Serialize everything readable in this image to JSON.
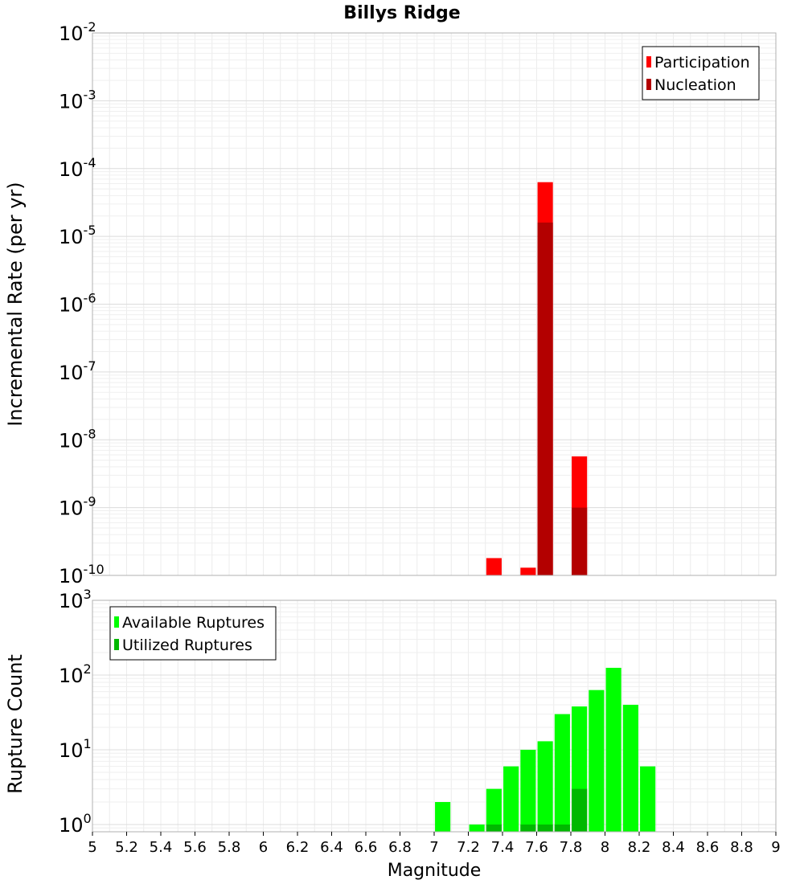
{
  "chart_data": [
    {
      "type": "bar",
      "title": "Billys Ridge",
      "xlabel": "",
      "ylabel": "Incremental Rate (per yr)",
      "yscale": "log",
      "ylim": [
        1e-10,
        0.01
      ],
      "xlim": [
        5,
        9
      ],
      "yticks": [
        {
          "base": "10",
          "exp": "-2"
        },
        {
          "base": "10",
          "exp": "-3"
        },
        {
          "base": "10",
          "exp": "-4"
        },
        {
          "base": "10",
          "exp": "-5"
        },
        {
          "base": "10",
          "exp": "-6"
        },
        {
          "base": "10",
          "exp": "-7"
        },
        {
          "base": "10",
          "exp": "-8"
        },
        {
          "base": "10",
          "exp": "-9"
        },
        {
          "base": "10",
          "exp": "-10"
        }
      ],
      "grid": true,
      "legend_position": "top-right",
      "series": [
        {
          "name": "Participation",
          "color": "#ff0000",
          "x": [
            7.35,
            7.55,
            7.65,
            7.85
          ],
          "values": [
            1.8e-10,
            1.3e-10,
            6.3e-05,
            5.7e-09
          ]
        },
        {
          "name": "Nucleation",
          "color": "#b30000",
          "x": [
            7.65,
            7.85
          ],
          "values": [
            1.6e-05,
            1e-09
          ]
        }
      ]
    },
    {
      "type": "bar",
      "xlabel": "Magnitude",
      "ylabel": "Rupture Count",
      "yscale": "log",
      "ylim": [
        0.8,
        1000
      ],
      "xlim": [
        5,
        9
      ],
      "yticks": [
        {
          "base": "10",
          "exp": "3"
        },
        {
          "base": "10",
          "exp": "2"
        },
        {
          "base": "10",
          "exp": "1"
        },
        {
          "base": "10",
          "exp": "0"
        }
      ],
      "xticks": [
        "5",
        "5.2",
        "5.4",
        "5.6",
        "5.8",
        "6",
        "6.2",
        "6.4",
        "6.6",
        "6.8",
        "7",
        "7.2",
        "7.4",
        "7.6",
        "7.8",
        "8",
        "8.2",
        "8.4",
        "8.6",
        "8.8",
        "9"
      ],
      "grid": true,
      "legend_position": "top-left",
      "series": [
        {
          "name": "Available Ruptures",
          "color": "#00ff00",
          "x": [
            7.05,
            7.25,
            7.35,
            7.45,
            7.55,
            7.65,
            7.75,
            7.85,
            7.95,
            8.05,
            8.15,
            8.25
          ],
          "values": [
            2,
            1,
            3,
            6,
            10,
            13,
            30,
            38,
            63,
            125,
            40,
            6
          ]
        },
        {
          "name": "Utilized Ruptures",
          "color": "#00b800",
          "x": [
            7.35,
            7.55,
            7.65,
            7.75,
            7.85
          ],
          "values": [
            1,
            1,
            1,
            1,
            3
          ]
        }
      ]
    }
  ]
}
